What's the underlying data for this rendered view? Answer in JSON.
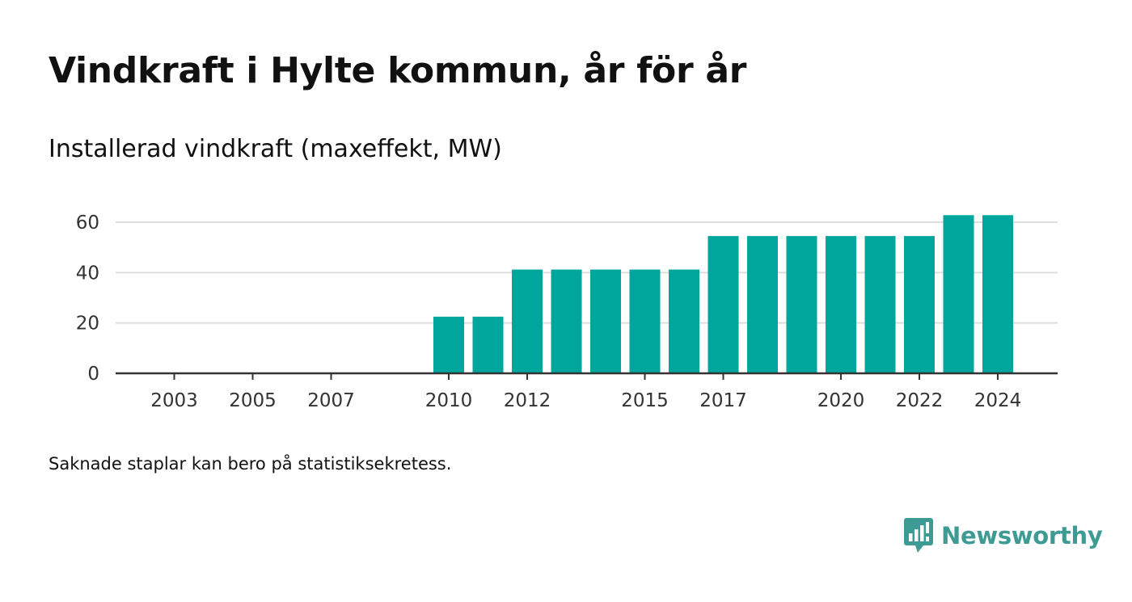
{
  "title": "Vindkraft i Hylte kommun, år för år",
  "footnote": "Saknade staplar kan bero på statistiksekretess.",
  "logo": {
    "name": "Newsworthy",
    "icon": "newsworthy-logo-icon",
    "color": "#3d9b93"
  },
  "chart_data": {
    "type": "bar",
    "title": "Installerad vindkraft (maxeffekt, MW)",
    "xlabel": "",
    "ylabel": "",
    "categories": [
      2002,
      2003,
      2004,
      2005,
      2006,
      2007,
      2008,
      2009,
      2010,
      2011,
      2012,
      2013,
      2014,
      2015,
      2016,
      2017,
      2018,
      2019,
      2020,
      2021,
      2022,
      2023,
      2024
    ],
    "values": [
      0,
      0,
      0,
      0,
      0,
      0,
      0,
      0,
      22.5,
      22.5,
      41.2,
      41.2,
      41.2,
      41.2,
      41.2,
      54.5,
      54.5,
      54.5,
      54.5,
      54.5,
      54.5,
      62.8,
      62.8
    ],
    "x_tick_labels": [
      "2003",
      "2005",
      "2007",
      "2010",
      "2012",
      "2015",
      "2017",
      "2020",
      "2022",
      "2024"
    ],
    "y_ticks": [
      0,
      20,
      40,
      60
    ],
    "ylim": [
      0,
      60
    ],
    "grid": true,
    "bar_color": "#00a69c",
    "grid_color": "#dddddd",
    "axis_color": "#333333"
  }
}
